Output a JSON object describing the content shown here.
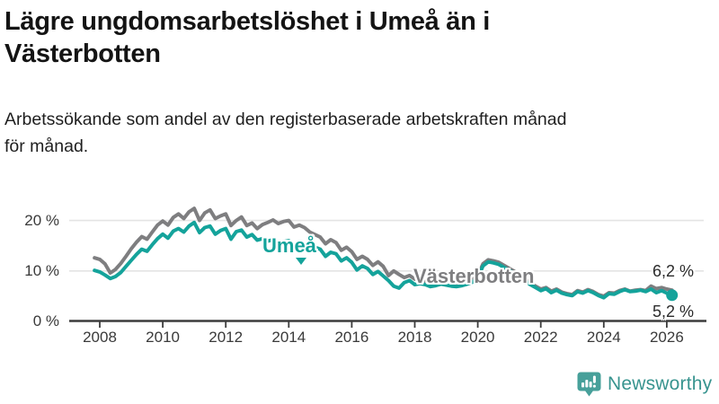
{
  "header": {
    "title": "Lägre ungdomsarbetslöshet i Umeå än i Västerbotten",
    "subtitle": "Arbetssökande som andel av den registerbaserade arbetskraften månad för månad."
  },
  "chart_data": {
    "type": "line",
    "title": "Lägre ungdomsarbetslöshet i Umeå än i Västerbotten",
    "xlabel": "",
    "ylabel": "",
    "ylim": [
      0,
      24
    ],
    "xlim": [
      2007.6,
      2026.6
    ],
    "grid": "horizontal",
    "legend_position": "inline-labels",
    "y_ticks": [
      {
        "v": 0,
        "label": "0 %"
      },
      {
        "v": 10,
        "label": "10 %"
      },
      {
        "v": 20,
        "label": "20 %"
      }
    ],
    "x_ticks": [
      {
        "v": 2008,
        "label": "2008"
      },
      {
        "v": 2010,
        "label": "2010"
      },
      {
        "v": 2012,
        "label": "2012"
      },
      {
        "v": 2014,
        "label": "2014"
      },
      {
        "v": 2016,
        "label": "2016"
      },
      {
        "v": 2018,
        "label": "2018"
      },
      {
        "v": 2020,
        "label": "2020"
      },
      {
        "v": 2022,
        "label": "2022"
      },
      {
        "v": 2024,
        "label": "2024"
      },
      {
        "v": 2026,
        "label": "2026"
      }
    ],
    "x_start": 2007.8333,
    "x_step": 0.166667,
    "series": [
      {
        "name": "Västerbotten",
        "color": "#7e7e80",
        "end_dot": false,
        "end_value_label": "6,2 %",
        "values": [
          12.6,
          12.3,
          11.4,
          9.6,
          10.3,
          11.5,
          12.9,
          14.4,
          15.7,
          16.8,
          16.3,
          17.7,
          19.1,
          19.9,
          19.1,
          20.6,
          21.3,
          20.4,
          21.7,
          22.4,
          20.0,
          21.5,
          22.1,
          20.4,
          20.9,
          21.3,
          19.0,
          20.0,
          20.7,
          19.0,
          19.5,
          18.4,
          19.2,
          19.6,
          20.1,
          19.4,
          19.8,
          20.0,
          18.7,
          19.1,
          18.6,
          17.7,
          17.2,
          16.7,
          15.4,
          16.2,
          15.6,
          14.1,
          14.7,
          13.8,
          12.3,
          12.9,
          12.3,
          11.1,
          11.8,
          10.9,
          9.1,
          10.0,
          9.3,
          8.7,
          9.1,
          8.4,
          8.1,
          7.9,
          7.5,
          7.7,
          8.0,
          7.8,
          7.6,
          7.4,
          7.6,
          7.9,
          8.3,
          9.1,
          11.4,
          12.2,
          12.0,
          11.7,
          11.1,
          10.5,
          9.9,
          9.2,
          8.4,
          7.6,
          7.0,
          6.4,
          6.7,
          6.0,
          6.4,
          5.8,
          5.5,
          5.3,
          6.1,
          5.8,
          6.3,
          5.9,
          5.3,
          5.0,
          5.7,
          5.6,
          6.1,
          6.4,
          6.0,
          6.2,
          6.3,
          6.1,
          7.0,
          6.5,
          6.7,
          6.4,
          6.2
        ]
      },
      {
        "name": "Umeå",
        "color": "#14a39b",
        "end_dot": true,
        "end_value_label": "5,2 %",
        "values": [
          10.1,
          9.8,
          9.2,
          8.5,
          8.9,
          9.7,
          10.9,
          12.1,
          13.3,
          14.3,
          13.9,
          15.2,
          16.4,
          17.3,
          16.5,
          17.9,
          18.4,
          17.7,
          18.9,
          19.6,
          17.6,
          18.6,
          18.9,
          17.3,
          18.0,
          18.4,
          16.3,
          17.8,
          18.1,
          16.7,
          17.2,
          16.1,
          16.4,
          15.9,
          16.2,
          15.5,
          15.8,
          16.0,
          14.9,
          15.4,
          15.1,
          14.5,
          14.7,
          14.3,
          12.9,
          13.7,
          13.4,
          12.0,
          12.6,
          11.7,
          10.2,
          11.0,
          10.5,
          9.3,
          9.9,
          9.0,
          8.1,
          7.0,
          6.6,
          7.7,
          8.1,
          7.3,
          7.5,
          7.3,
          6.9,
          7.1,
          7.4,
          7.2,
          7.0,
          6.9,
          7.1,
          7.4,
          7.8,
          8.6,
          11.0,
          11.8,
          11.6,
          11.3,
          10.7,
          10.1,
          9.5,
          8.8,
          8.1,
          7.3,
          6.7,
          6.1,
          6.5,
          5.7,
          6.2,
          5.6,
          5.3,
          5.1,
          5.9,
          5.6,
          6.1,
          5.7,
          5.1,
          4.7,
          5.5,
          5.4,
          5.9,
          6.3,
          5.9,
          6.0,
          6.2,
          5.9,
          6.4,
          5.7,
          6.1,
          5.6,
          5.2
        ]
      }
    ],
    "end_labels": [
      "6,2 %",
      "5,2 %"
    ],
    "colors": {
      "accent_teal": "#14a39b",
      "neutral_gray": "#7e7e80",
      "grid": "#e4e4e4",
      "axis": "#3c3c3c"
    }
  },
  "footer": {
    "brand": "Newsworthy"
  }
}
